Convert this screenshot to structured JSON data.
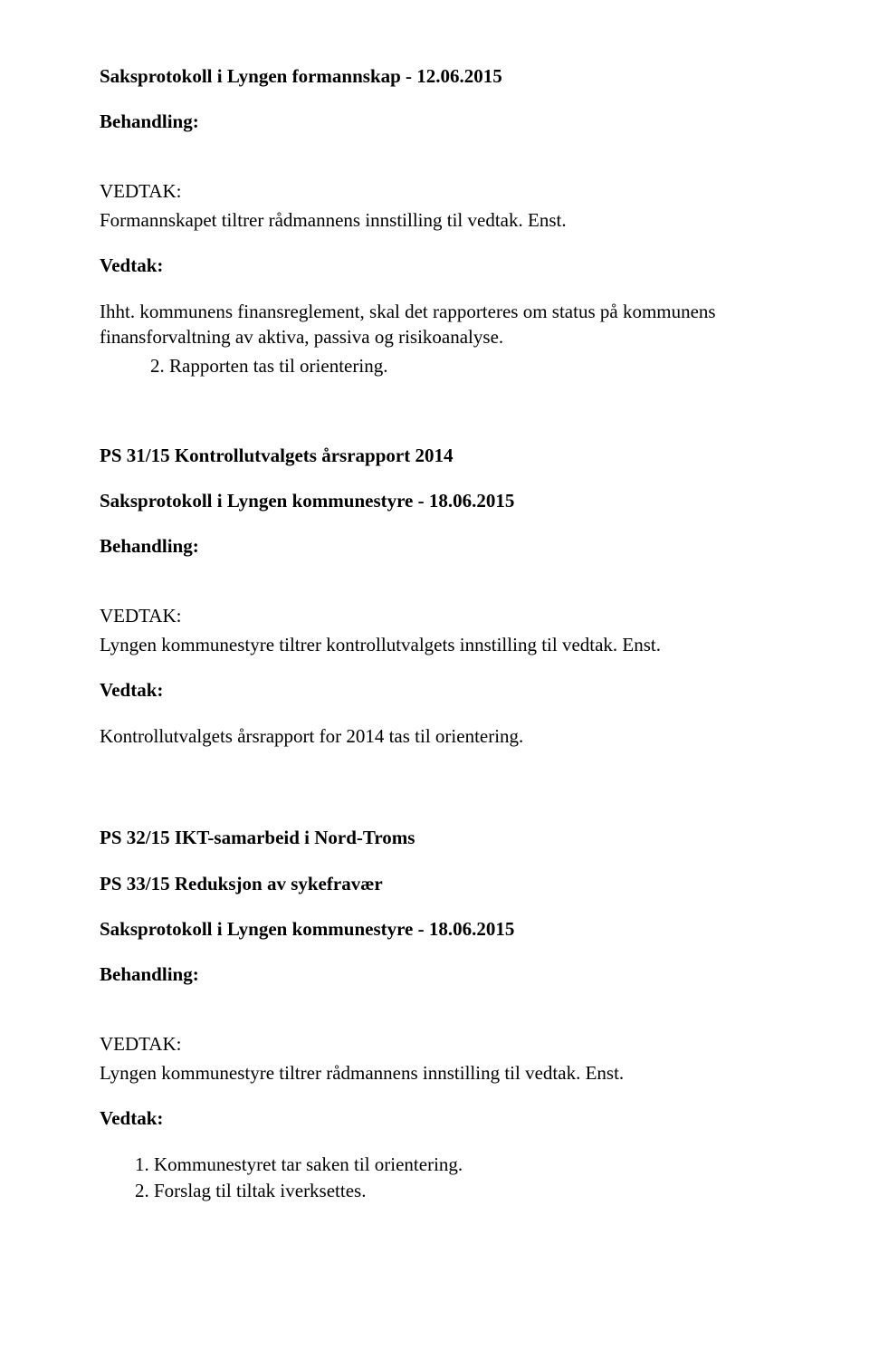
{
  "section1": {
    "protocol_line": "Saksprotokoll i Lyngen formannskap - 12.06.2015",
    "behandling_label": "Behandling:",
    "vedtak_caps": "VEDTAK:",
    "body1": "Formannskapet tiltrer rådmannens innstilling til vedtak. Enst.",
    "vedtak_label": "Vedtak:",
    "body2": "Ihht. kommunens finansreglement, skal det rapporteres om status på kommunens finansforvaltning av aktiva, passiva og risikoanalyse.",
    "list_item": "2.   Rapporten tas til orientering."
  },
  "section2": {
    "title": "PS 31/15 Kontrollutvalgets årsrapport 2014",
    "protocol_line": "Saksprotokoll i Lyngen kommunestyre - 18.06.2015",
    "behandling_label": "Behandling:",
    "vedtak_caps": "VEDTAK:",
    "body1": "Lyngen kommunestyre tiltrer kontrollutvalgets innstilling til vedtak. Enst.",
    "vedtak_label": "Vedtak:",
    "body2": "Kontrollutvalgets årsrapport for 2014 tas til orientering."
  },
  "section3": {
    "title_ps32": "PS 32/15 IKT-samarbeid i Nord-Troms",
    "title_ps33": "PS 33/15 Reduksjon av sykefravær",
    "protocol_line": "Saksprotokoll i Lyngen kommunestyre - 18.06.2015",
    "behandling_label": "Behandling:",
    "vedtak_caps": "VEDTAK:",
    "body1": "Lyngen kommunestyre tiltrer rådmannens innstilling til vedtak. Enst.",
    "vedtak_label": "Vedtak:",
    "ol_item1": "Kommunestyret tar saken til orientering.",
    "ol_item2": "Forslag til tiltak iverksettes."
  }
}
